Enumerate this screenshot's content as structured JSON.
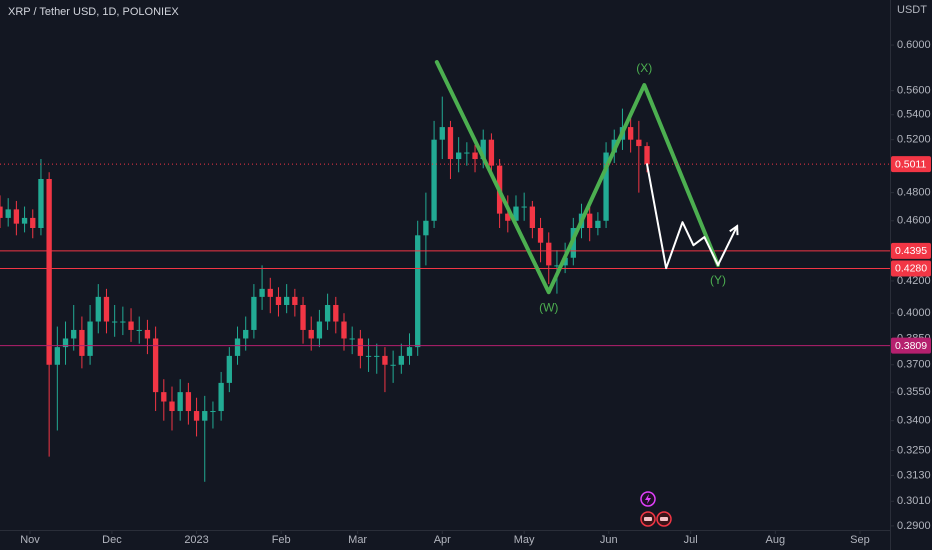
{
  "chart_data": {
    "type": "candlestick",
    "title": "XRP / Tether USD, 1D, POLONIEX",
    "y_axis_label": "USDT",
    "log_scale": true,
    "up_color": "#22ab94",
    "down_color": "#f23645",
    "xlim": [
      "2022-10-21",
      "2023-09-12"
    ],
    "ylim": [
      0.2882,
      0.6423
    ],
    "xticks": [
      {
        "value": "2022-11-01",
        "label": "Nov"
      },
      {
        "value": "2022-12-01",
        "label": "Dec"
      },
      {
        "value": "2023-01-01",
        "label": "2023"
      },
      {
        "value": "2023-02-01",
        "label": "Feb"
      },
      {
        "value": "2023-03-01",
        "label": "Mar"
      },
      {
        "value": "2023-04-01",
        "label": "Apr"
      },
      {
        "value": "2023-05-01",
        "label": "May"
      },
      {
        "value": "2023-06-01",
        "label": "Jun"
      },
      {
        "value": "2023-07-01",
        "label": "Jul"
      },
      {
        "value": "2023-08-01",
        "label": "Aug"
      },
      {
        "value": "2023-09-01",
        "label": "Sep"
      }
    ],
    "yticks": [
      {
        "value": 0.6,
        "label": "0.6000"
      },
      {
        "value": 0.56,
        "label": "0.5600"
      },
      {
        "value": 0.54,
        "label": "0.5400"
      },
      {
        "value": 0.52,
        "label": "0.5200"
      },
      {
        "value": 0.48,
        "label": "0.4800"
      },
      {
        "value": 0.46,
        "label": "0.4600"
      },
      {
        "value": 0.42,
        "label": "0.4200"
      },
      {
        "value": 0.4,
        "label": "0.4000"
      },
      {
        "value": 0.385,
        "label": "0.3850"
      },
      {
        "value": 0.37,
        "label": "0.3700"
      },
      {
        "value": 0.355,
        "label": "0.3550"
      },
      {
        "value": 0.34,
        "label": "0.3400"
      },
      {
        "value": 0.325,
        "label": "0.3250"
      },
      {
        "value": 0.313,
        "label": "0.3130"
      },
      {
        "value": 0.301,
        "label": "0.3010"
      },
      {
        "value": 0.29,
        "label": "0.2900"
      }
    ],
    "candles": {
      "x": [
        "2022-10-21",
        "2022-10-24",
        "2022-10-27",
        "2022-10-30",
        "2022-11-02",
        "2022-11-05",
        "2022-11-08",
        "2022-11-11",
        "2022-11-14",
        "2022-11-17",
        "2022-11-20",
        "2022-11-23",
        "2022-11-26",
        "2022-11-29",
        "2022-12-02",
        "2022-12-05",
        "2022-12-08",
        "2022-12-11",
        "2022-12-14",
        "2022-12-17",
        "2022-12-20",
        "2022-12-23",
        "2022-12-26",
        "2022-12-29",
        "2023-01-01",
        "2023-01-04",
        "2023-01-07",
        "2023-01-10",
        "2023-01-13",
        "2023-01-16",
        "2023-01-19",
        "2023-01-22",
        "2023-01-25",
        "2023-01-28",
        "2023-01-31",
        "2023-02-03",
        "2023-02-06",
        "2023-02-09",
        "2023-02-12",
        "2023-02-15",
        "2023-02-18",
        "2023-02-21",
        "2023-02-24",
        "2023-02-27",
        "2023-03-02",
        "2023-03-05",
        "2023-03-08",
        "2023-03-11",
        "2023-03-14",
        "2023-03-17",
        "2023-03-20",
        "2023-03-23",
        "2023-03-26",
        "2023-03-29",
        "2023-04-01",
        "2023-04-04",
        "2023-04-07",
        "2023-04-10",
        "2023-04-13",
        "2023-04-16",
        "2023-04-19",
        "2023-04-22",
        "2023-04-25",
        "2023-04-28",
        "2023-05-01",
        "2023-05-04",
        "2023-05-07",
        "2023-05-10",
        "2023-05-13",
        "2023-05-16",
        "2023-05-19",
        "2023-05-22",
        "2023-05-25",
        "2023-05-28",
        "2023-05-31",
        "2023-06-03",
        "2023-06-06",
        "2023-06-09",
        "2023-06-12",
        "2023-06-15"
      ],
      "open": [
        0.47,
        0.462,
        0.468,
        0.458,
        0.462,
        0.455,
        0.49,
        0.37,
        0.38,
        0.385,
        0.39,
        0.375,
        0.395,
        0.41,
        0.395,
        0.395,
        0.395,
        0.39,
        0.39,
        0.385,
        0.355,
        0.35,
        0.345,
        0.355,
        0.345,
        0.34,
        0.345,
        0.345,
        0.36,
        0.375,
        0.385,
        0.39,
        0.41,
        0.415,
        0.41,
        0.405,
        0.41,
        0.405,
        0.39,
        0.385,
        0.395,
        0.405,
        0.395,
        0.385,
        0.385,
        0.375,
        0.375,
        0.375,
        0.37,
        0.37,
        0.375,
        0.38,
        0.45,
        0.46,
        0.52,
        0.53,
        0.505,
        0.51,
        0.51,
        0.505,
        0.52,
        0.5,
        0.465,
        0.46,
        0.47,
        0.47,
        0.455,
        0.445,
        0.43,
        0.43,
        0.435,
        0.455,
        0.465,
        0.455,
        0.46,
        0.51,
        0.52,
        0.53,
        0.52,
        0.515
      ],
      "high": [
        0.478,
        0.476,
        0.474,
        0.47,
        0.468,
        0.505,
        0.495,
        0.392,
        0.395,
        0.405,
        0.398,
        0.405,
        0.418,
        0.415,
        0.405,
        0.404,
        0.403,
        0.398,
        0.396,
        0.392,
        0.362,
        0.358,
        0.362,
        0.36,
        0.352,
        0.353,
        0.35,
        0.366,
        0.38,
        0.392,
        0.398,
        0.418,
        0.43,
        0.422,
        0.416,
        0.418,
        0.415,
        0.41,
        0.398,
        0.402,
        0.412,
        0.41,
        0.4,
        0.392,
        0.39,
        0.385,
        0.382,
        0.38,
        0.378,
        0.382,
        0.388,
        0.46,
        0.48,
        0.535,
        0.555,
        0.535,
        0.522,
        0.518,
        0.516,
        0.528,
        0.525,
        0.505,
        0.478,
        0.478,
        0.48,
        0.474,
        0.462,
        0.452,
        0.44,
        0.445,
        0.462,
        0.472,
        0.47,
        0.466,
        0.518,
        0.528,
        0.545,
        0.54,
        0.535,
        0.518
      ],
      "low": [
        0.455,
        0.456,
        0.45,
        0.452,
        0.448,
        0.45,
        0.322,
        0.335,
        0.37,
        0.378,
        0.368,
        0.37,
        0.388,
        0.388,
        0.386,
        0.387,
        0.383,
        0.382,
        0.376,
        0.345,
        0.34,
        0.335,
        0.34,
        0.338,
        0.332,
        0.31,
        0.336,
        0.34,
        0.355,
        0.37,
        0.378,
        0.385,
        0.402,
        0.4,
        0.398,
        0.4,
        0.398,
        0.382,
        0.378,
        0.38,
        0.39,
        0.388,
        0.378,
        0.376,
        0.368,
        0.366,
        0.365,
        0.355,
        0.36,
        0.365,
        0.37,
        0.375,
        0.43,
        0.455,
        0.505,
        0.49,
        0.495,
        0.5,
        0.495,
        0.498,
        0.492,
        0.455,
        0.452,
        0.455,
        0.46,
        0.448,
        0.432,
        0.418,
        0.412,
        0.425,
        0.43,
        0.448,
        0.446,
        0.45,
        0.455,
        0.502,
        0.512,
        0.51,
        0.48,
        0.495
      ],
      "close": [
        0.462,
        0.468,
        0.458,
        0.462,
        0.455,
        0.49,
        0.37,
        0.38,
        0.385,
        0.39,
        0.375,
        0.395,
        0.41,
        0.395,
        0.395,
        0.395,
        0.39,
        0.39,
        0.385,
        0.355,
        0.35,
        0.345,
        0.355,
        0.345,
        0.34,
        0.345,
        0.345,
        0.36,
        0.375,
        0.385,
        0.39,
        0.41,
        0.415,
        0.41,
        0.405,
        0.41,
        0.405,
        0.39,
        0.385,
        0.395,
        0.405,
        0.395,
        0.385,
        0.385,
        0.375,
        0.375,
        0.375,
        0.37,
        0.37,
        0.375,
        0.38,
        0.45,
        0.46,
        0.52,
        0.53,
        0.505,
        0.51,
        0.51,
        0.505,
        0.52,
        0.5,
        0.465,
        0.46,
        0.47,
        0.47,
        0.455,
        0.445,
        0.43,
        0.43,
        0.435,
        0.455,
        0.465,
        0.455,
        0.46,
        0.51,
        0.52,
        0.53,
        0.52,
        0.515,
        0.5011
      ]
    },
    "last_price_color": "#f23645",
    "levels": [
      {
        "value": 0.4395,
        "color": "#f23645"
      },
      {
        "value": 0.428,
        "label": "0.4280",
        "color": "#f23645"
      },
      {
        "value": 0.3809,
        "color": "#b5206e"
      }
    ],
    "drawings": [
      {
        "color": "#4caf50",
        "width": 4,
        "x": [
          "2023-03-30",
          "2023-05-10",
          "2023-06-14",
          "2023-07-11"
        ],
        "y": [
          0.5848,
          0.4129,
          0.5648,
          0.4302
        ]
      },
      {
        "color": "#ffffff",
        "width": 2,
        "arrow": true,
        "x": [
          "2023-06-15",
          "2023-06-22",
          "2023-06-28",
          "2023-07-02",
          "2023-07-06",
          "2023-07-11",
          "2023-07-18"
        ],
        "y": [
          0.5011,
          0.4282,
          0.459,
          0.4433,
          0.4488,
          0.4302,
          0.4563
        ]
      }
    ],
    "wave_labels": [
      {
        "text": "(X)",
        "x": "2023-06-14",
        "y": 0.5648,
        "color": "#4caf50"
      },
      {
        "text": "(W)",
        "x": "2023-05-10",
        "y": 0.4129,
        "color": "#4caf50"
      },
      {
        "text": "(Y)",
        "x": "2023-07-11",
        "y": 0.4302,
        "color": "#4caf50"
      }
    ]
  }
}
